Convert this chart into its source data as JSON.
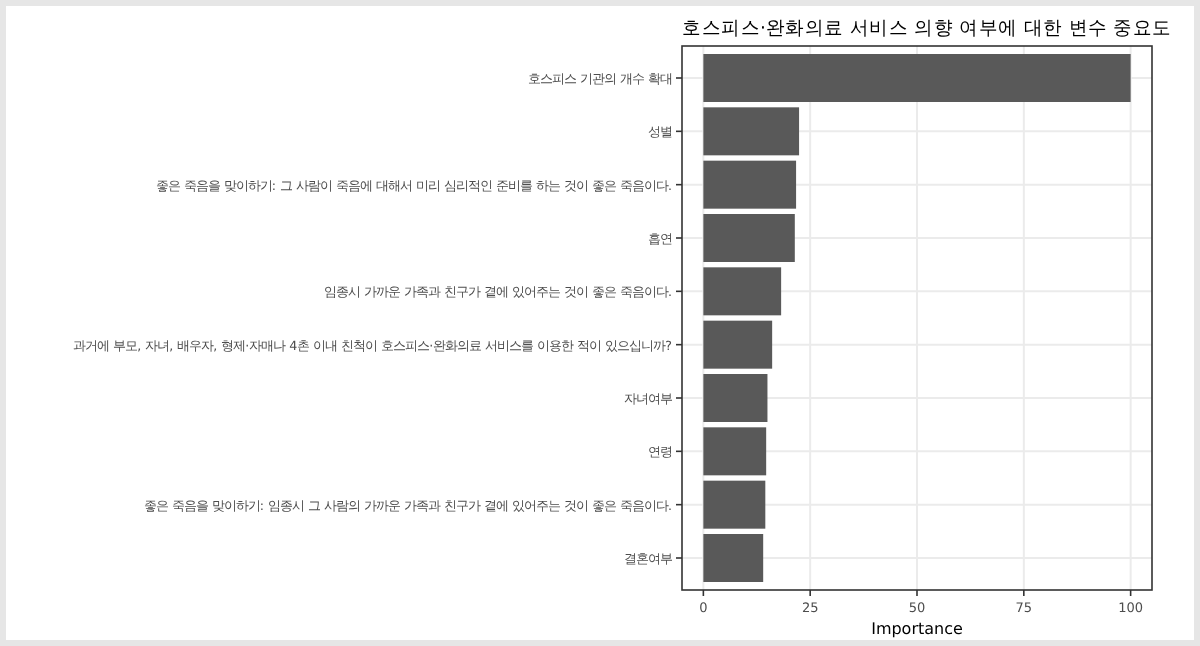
{
  "chart_data": {
    "type": "bar",
    "orientation": "horizontal",
    "title": "호스피스·완화의료 서비스 의향 여부에 대한 변수 중요도",
    "xlabel": "Importance",
    "categories": [
      "호스피스 기관의 개수 확대",
      "성별",
      "좋은 죽음을 맞이하기: 그 사람이 죽음에 대해서 미리 심리적인 준비를 하는 것이 좋은 죽음이다.",
      "흡연",
      "임종시 가까운 가족과 친구가 곁에 있어주는 것이 좋은 죽음이다.",
      "과거에 부모, 자녀, 배우자, 형제·자매나 4촌 이내 친척이 호스피스·완화의료 서비스를 이용한 적이 있으십니까?",
      "자녀여부",
      "연령",
      "좋은 죽음을 맞이하기: 임종시 그 사람의 가까운 가족과 친구가 곁에 있어주는 것이 좋은 죽음이다.",
      "결혼여부"
    ],
    "values": [
      100,
      22.4,
      21.7,
      21.4,
      18.2,
      16.1,
      15.0,
      14.7,
      14.5,
      14.0
    ],
    "color": "#595959",
    "xlim": [
      -5,
      105
    ],
    "xticks": [
      0,
      25,
      50,
      75,
      100
    ],
    "grid": true
  }
}
